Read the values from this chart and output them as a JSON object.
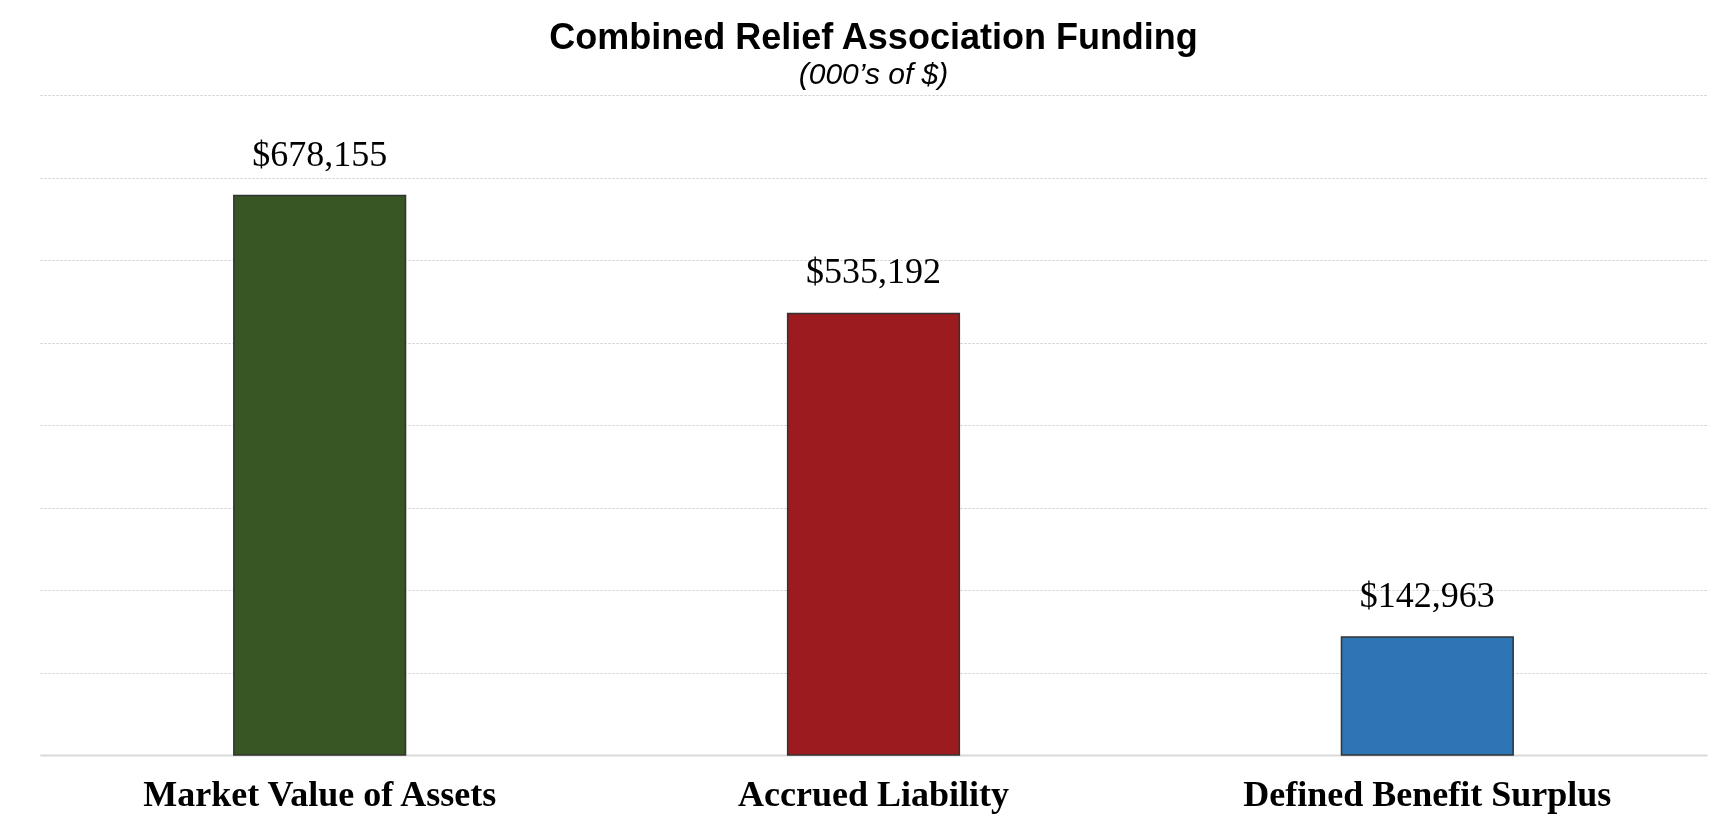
{
  "chart_data": {
    "type": "bar",
    "title": "Combined Relief Association Funding",
    "subtitle": "(000’s of $)",
    "categories": [
      "Market Value of Assets",
      "Accrued Liability",
      "Defined Benefit Surplus"
    ],
    "values": [
      678155,
      535192,
      142963
    ],
    "colors": [
      "#375623",
      "#9b1b1f",
      "#2e75b6"
    ],
    "value_labels": [
      "$678,155",
      "$535,192",
      "$142,963"
    ],
    "ylim": [
      0,
      800000
    ],
    "yticks": [
      {
        "value": 0,
        "label": null
      },
      {
        "value": 100000,
        "label": null
      },
      {
        "value": 200000,
        "label": null
      },
      {
        "value": 300000,
        "label": null
      },
      {
        "value": 400000,
        "label": null
      },
      {
        "value": 500000,
        "label": null
      },
      {
        "value": 600000,
        "label": null
      },
      {
        "value": 700000,
        "label": null
      },
      {
        "value": 800000,
        "label": null
      }
    ],
    "grid": "y",
    "legend": false
  }
}
